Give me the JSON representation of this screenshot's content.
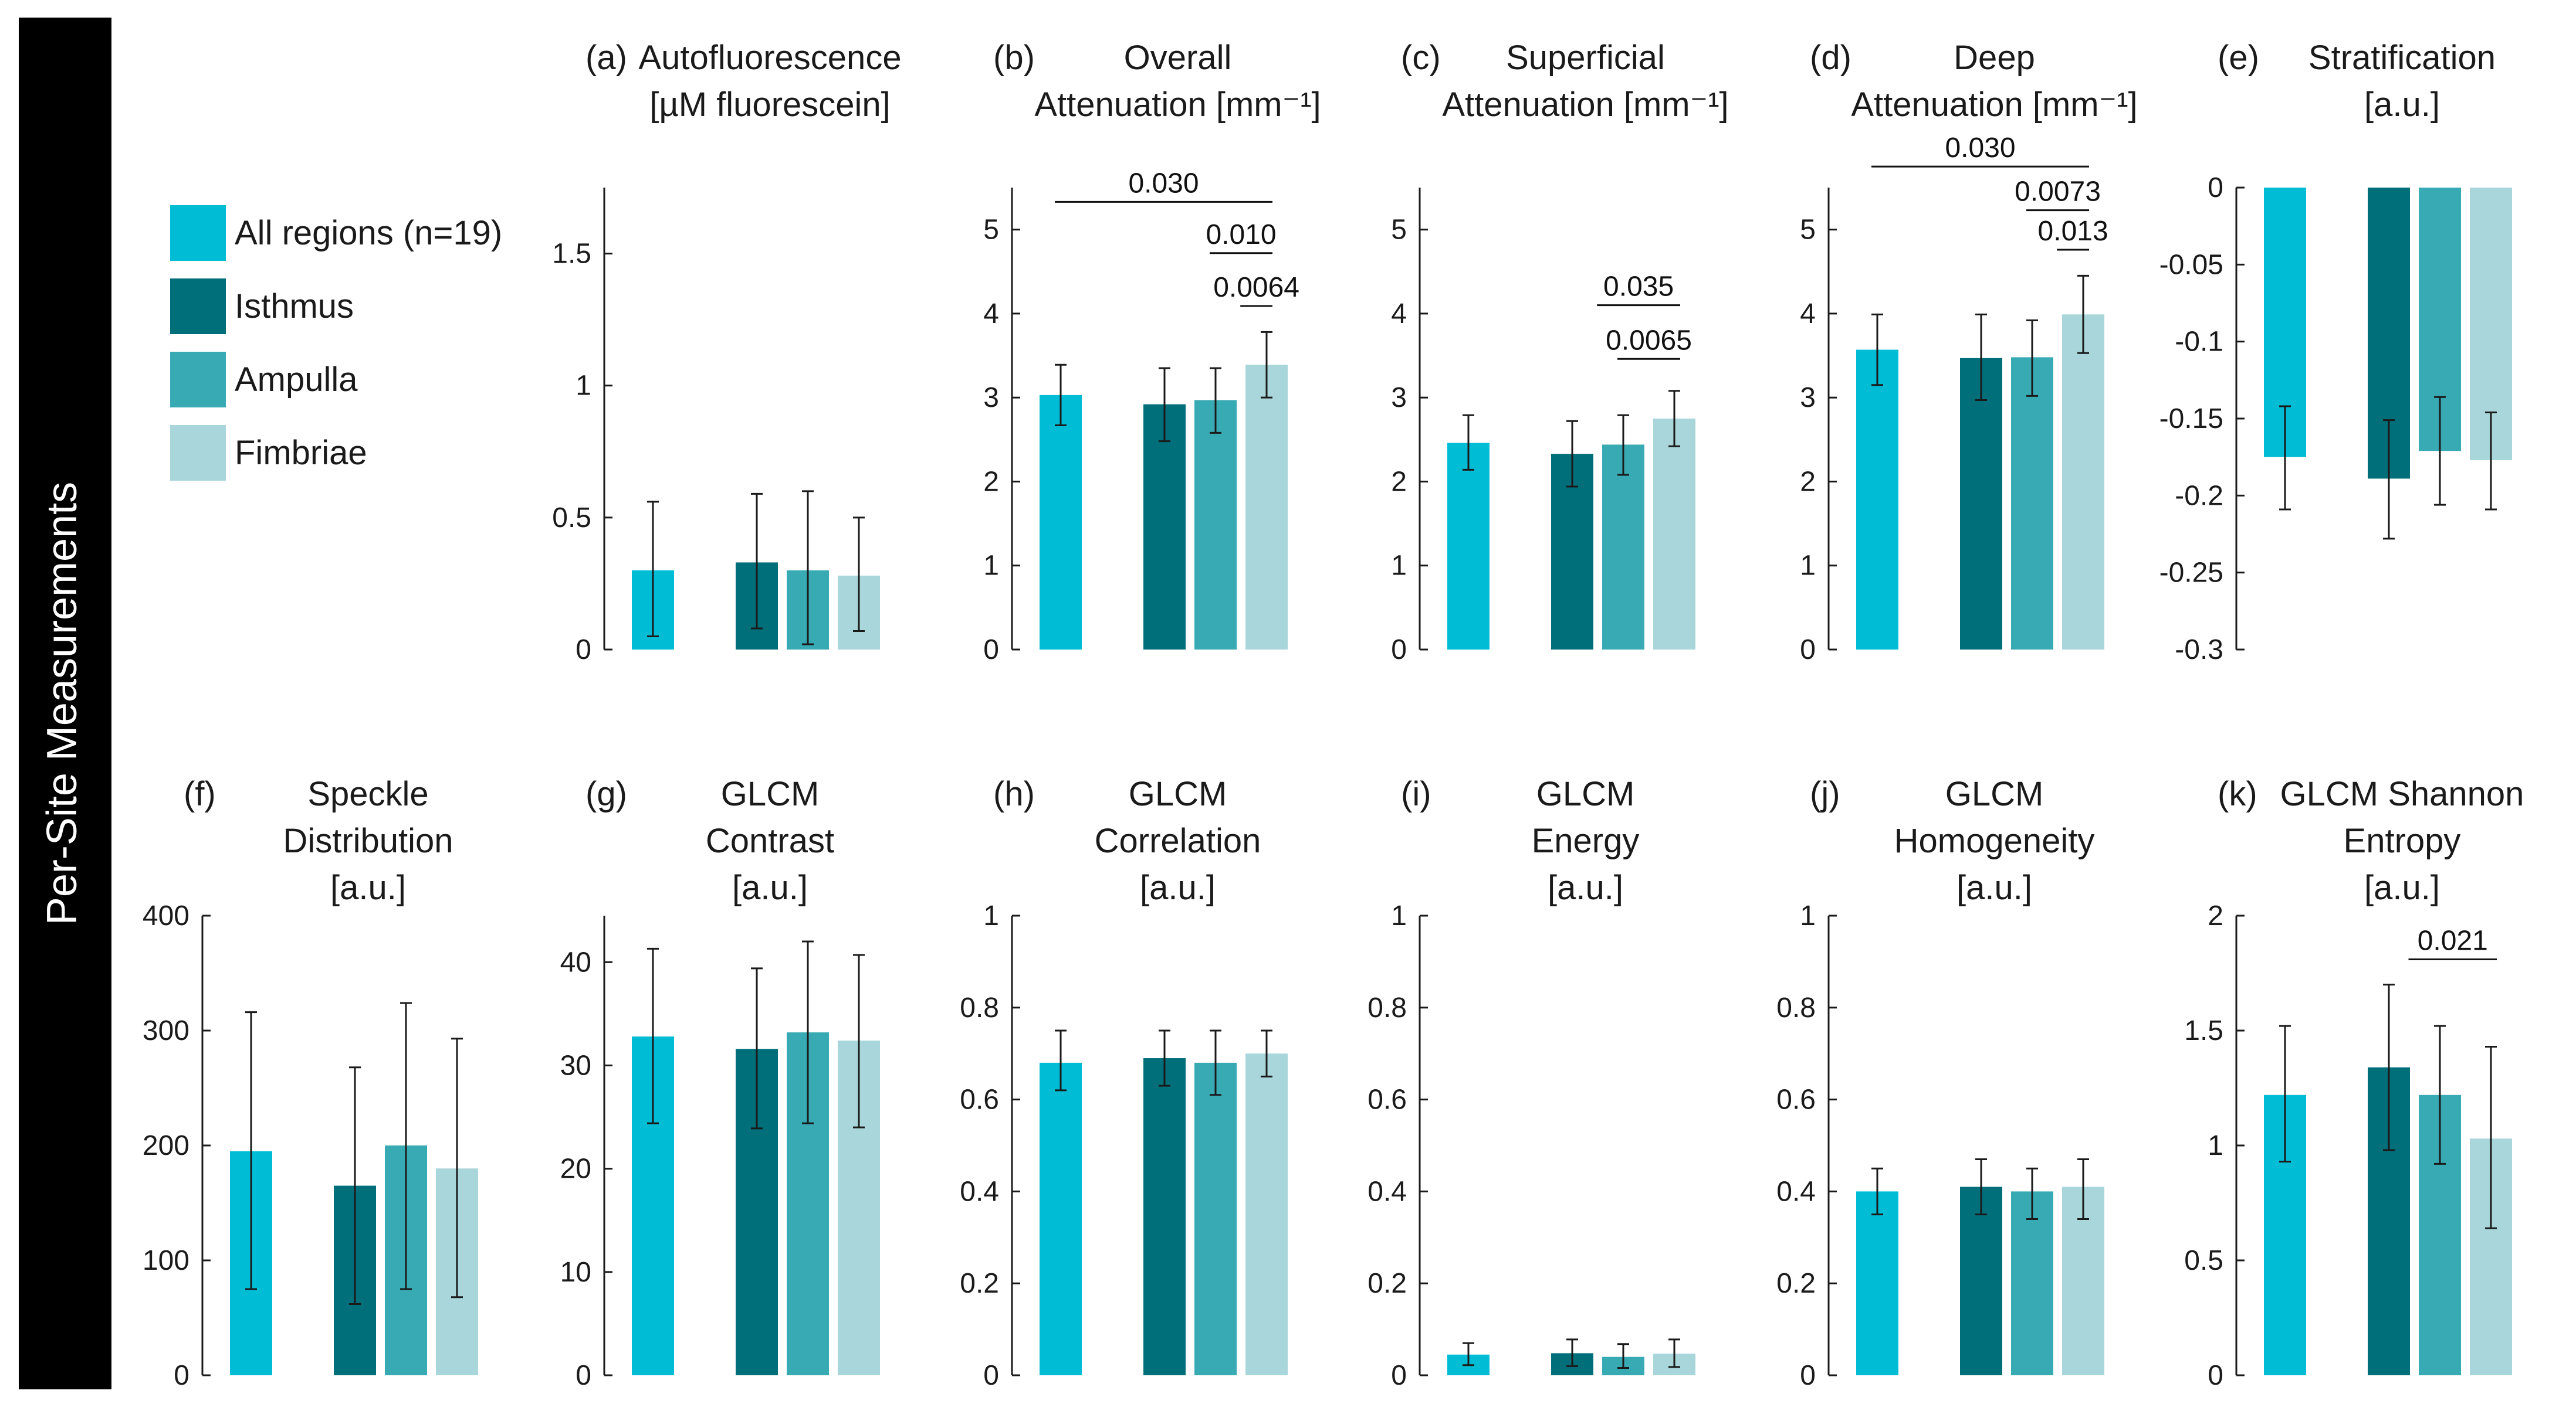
{
  "figure": {
    "side_label": "Per-Site Measurements",
    "colors": {
      "All regions": "#00BCD4",
      "Isthmus": "#006F7A",
      "Ampulla": "#38AAB4",
      "Fimbriae": "#A8D6DA",
      "side_bar": "#000000",
      "axis": "#1a1a1a"
    },
    "legend": [
      {
        "label": "All regions (n=19)",
        "color": "#00BCD4"
      },
      {
        "label": "Isthmus",
        "color": "#006F7A"
      },
      {
        "label": "Ampulla",
        "color": "#38AAB4"
      },
      {
        "label": "Fimbriae",
        "color": "#A8D6DA"
      }
    ]
  },
  "chart_data": [
    {
      "id": "a",
      "type": "bar",
      "panel_label": "(a)",
      "title_lines": [
        "Autofluorescence",
        "[µM fluorescein]"
      ],
      "categories": [
        "All regions",
        "Isthmus",
        "Ampulla",
        "Fimbriae"
      ],
      "values": [
        0.3,
        0.33,
        0.3,
        0.28
      ],
      "err_low": [
        0.05,
        0.08,
        0.02,
        0.07
      ],
      "err_high": [
        0.56,
        0.59,
        0.6,
        0.5
      ],
      "ylim": [
        0,
        1.75
      ],
      "yticks": [
        0,
        0.5,
        1,
        1.5
      ],
      "ytick_labels": [
        "0",
        "0.5",
        "1",
        "1.5"
      ],
      "sig": []
    },
    {
      "id": "b",
      "type": "bar",
      "panel_label": "(b)",
      "title_lines": [
        "Overall",
        "Attenuation [mm⁻¹]"
      ],
      "categories": [
        "All regions",
        "Isthmus",
        "Ampulla",
        "Fimbriae"
      ],
      "values": [
        3.03,
        2.92,
        2.97,
        3.39
      ],
      "err_low": [
        2.67,
        2.48,
        2.58,
        3.0
      ],
      "err_high": [
        3.39,
        3.35,
        3.35,
        3.78
      ],
      "ylim": [
        0,
        5.5
      ],
      "yticks": [
        0,
        1,
        2,
        3,
        4,
        5
      ],
      "ytick_labels": [
        "0",
        "1",
        "2",
        "3",
        "4",
        "5"
      ],
      "sig": [
        {
          "from": 0,
          "to": 3,
          "level": 5.33,
          "label": "0.030"
        },
        {
          "from": 2,
          "to": 3,
          "level": 4.72,
          "label": "0.010"
        },
        {
          "from": 2.6,
          "to": 3,
          "level": 4.09,
          "label": "0.0064"
        }
      ]
    },
    {
      "id": "c",
      "type": "bar",
      "panel_label": "(c)",
      "title_lines": [
        "Superficial",
        "Attenuation [mm⁻¹]"
      ],
      "categories": [
        "All regions",
        "Isthmus",
        "Ampulla",
        "Fimbriae"
      ],
      "values": [
        2.46,
        2.33,
        2.44,
        2.75
      ],
      "err_low": [
        2.14,
        1.94,
        2.08,
        2.42
      ],
      "err_high": [
        2.79,
        2.72,
        2.79,
        3.08
      ],
      "ylim": [
        0,
        5.5
      ],
      "yticks": [
        0,
        1,
        2,
        3,
        4,
        5
      ],
      "ytick_labels": [
        "0",
        "1",
        "2",
        "3",
        "4",
        "5"
      ],
      "sig": [
        {
          "from": 1.6,
          "to": 3,
          "level": 4.1,
          "label": "0.035"
        },
        {
          "from": 2.0,
          "to": 3,
          "level": 3.46,
          "label": "0.0065"
        }
      ]
    },
    {
      "id": "d",
      "type": "bar",
      "panel_label": "(d)",
      "title_lines": [
        "Deep",
        "Attenuation  [mm⁻¹]"
      ],
      "categories": [
        "All regions",
        "Isthmus",
        "Ampulla",
        "Fimbriae"
      ],
      "values": [
        3.57,
        3.47,
        3.48,
        3.99
      ],
      "err_low": [
        3.15,
        2.97,
        3.02,
        3.53
      ],
      "err_high": [
        3.99,
        3.99,
        3.92,
        4.45
      ],
      "ylim": [
        0,
        5.5
      ],
      "yticks": [
        0,
        1,
        2,
        3,
        4,
        5
      ],
      "ytick_labels": [
        "0",
        "1",
        "2",
        "3",
        "4",
        "5"
      ],
      "sig": [
        {
          "from": 0,
          "to": 3,
          "level": 5.75,
          "label": "0.030"
        },
        {
          "from": 2,
          "to": 3,
          "level": 5.23,
          "label": "0.0073"
        },
        {
          "from": 2.6,
          "to": 3,
          "level": 4.76,
          "label": "0.013"
        }
      ]
    },
    {
      "id": "e",
      "type": "bar",
      "panel_label": "(e)",
      "title_lines": [
        "Stratification",
        "[a.u.]"
      ],
      "categories": [
        "All regions",
        "Isthmus",
        "Ampulla",
        "Fimbriae"
      ],
      "values": [
        -0.175,
        -0.189,
        -0.171,
        -0.177
      ],
      "err_low": [
        -0.209,
        -0.228,
        -0.206,
        -0.209
      ],
      "err_high": [
        -0.142,
        -0.151,
        -0.136,
        -0.146
      ],
      "ylim": [
        -0.3,
        0
      ],
      "yticks": [
        0,
        -0.05,
        -0.1,
        -0.15,
        -0.2,
        -0.25,
        -0.3
      ],
      "ytick_labels": [
        "0",
        "-0.05",
        "-0.1",
        "-0.15",
        "-0.2",
        "-0.25",
        "-0.3"
      ],
      "sig": []
    },
    {
      "id": "f",
      "type": "bar",
      "panel_label": "(f)",
      "title_lines": [
        "Speckle",
        "Distribution",
        "[a.u.]"
      ],
      "categories": [
        "All regions",
        "Isthmus",
        "Ampulla",
        "Fimbriae"
      ],
      "values": [
        195,
        165,
        200,
        180
      ],
      "err_low": [
        75,
        62,
        75,
        68
      ],
      "err_high": [
        316,
        268,
        324,
        293
      ],
      "ylim": [
        0,
        400
      ],
      "yticks": [
        0,
        100,
        200,
        300,
        400
      ],
      "ytick_labels": [
        "0",
        "100",
        "200",
        "300",
        "400"
      ],
      "sig": []
    },
    {
      "id": "g",
      "type": "bar",
      "panel_label": "(g)",
      "title_lines": [
        "GLCM",
        "Contrast",
        "[a.u.]"
      ],
      "categories": [
        "All regions",
        "Isthmus",
        "Ampulla",
        "Fimbriae"
      ],
      "values": [
        32.8,
        31.6,
        33.2,
        32.4
      ],
      "err_low": [
        24.4,
        23.9,
        24.4,
        24.0
      ],
      "err_high": [
        41.3,
        39.4,
        42.0,
        40.7
      ],
      "ylim": [
        0,
        44.5
      ],
      "yticks": [
        0,
        10,
        20,
        30,
        40
      ],
      "ytick_labels": [
        "0",
        "10",
        "20",
        "30",
        "40"
      ],
      "sig": []
    },
    {
      "id": "h",
      "type": "bar",
      "panel_label": "(h)",
      "title_lines": [
        "GLCM",
        "Correlation",
        "[a.u.]"
      ],
      "categories": [
        "All regions",
        "Isthmus",
        "Ampulla",
        "Fimbriae"
      ],
      "values": [
        0.68,
        0.69,
        0.68,
        0.7
      ],
      "err_low": [
        0.62,
        0.63,
        0.61,
        0.65
      ],
      "err_high": [
        0.75,
        0.75,
        0.75,
        0.75
      ],
      "ylim": [
        0,
        1
      ],
      "yticks": [
        0,
        0.2,
        0.4,
        0.6,
        0.8,
        1
      ],
      "ytick_labels": [
        "0",
        "0.2",
        "0.4",
        "0.6",
        "0.8",
        "1"
      ],
      "sig": []
    },
    {
      "id": "i",
      "type": "bar",
      "panel_label": "(i)",
      "title_lines": [
        "GLCM",
        "Energy",
        "[a.u.]"
      ],
      "categories": [
        "All regions",
        "Isthmus",
        "Ampulla",
        "Fimbriae"
      ],
      "values": [
        0.045,
        0.048,
        0.04,
        0.047
      ],
      "err_low": [
        0.022,
        0.02,
        0.016,
        0.018
      ],
      "err_high": [
        0.07,
        0.078,
        0.068,
        0.078
      ],
      "ylim": [
        0,
        1
      ],
      "yticks": [
        0,
        0.2,
        0.4,
        0.6,
        0.8,
        1
      ],
      "ytick_labels": [
        "0",
        "0.2",
        "0.4",
        "0.6",
        "0.8",
        "1"
      ],
      "sig": []
    },
    {
      "id": "j",
      "type": "bar",
      "panel_label": "(j)",
      "title_lines": [
        "GLCM",
        "Homogeneity",
        "[a.u.]"
      ],
      "categories": [
        "All regions",
        "Isthmus",
        "Ampulla",
        "Fimbriae"
      ],
      "values": [
        0.4,
        0.41,
        0.4,
        0.41
      ],
      "err_low": [
        0.35,
        0.35,
        0.34,
        0.34
      ],
      "err_high": [
        0.45,
        0.47,
        0.45,
        0.47
      ],
      "ylim": [
        0,
        1
      ],
      "yticks": [
        0,
        0.2,
        0.4,
        0.6,
        0.8,
        1
      ],
      "ytick_labels": [
        "0",
        "0.2",
        "0.4",
        "0.6",
        "0.8",
        "1"
      ],
      "sig": []
    },
    {
      "id": "k",
      "type": "bar",
      "panel_label": "(k)",
      "title_lines": [
        "GLCM Shannon",
        "Entropy",
        "[a.u.]"
      ],
      "categories": [
        "All regions",
        "Isthmus",
        "Ampulla",
        "Fimbriae"
      ],
      "values": [
        1.22,
        1.34,
        1.22,
        1.03
      ],
      "err_low": [
        0.93,
        0.98,
        0.92,
        0.64
      ],
      "err_high": [
        1.52,
        1.7,
        1.52,
        1.43
      ],
      "ylim": [
        0,
        2
      ],
      "yticks": [
        0,
        0.5,
        1,
        1.5,
        2
      ],
      "ytick_labels": [
        "0",
        "0.5",
        "1",
        "1.5",
        "2"
      ],
      "sig": [
        {
          "from": 1.5,
          "to": 3,
          "level": 1.81,
          "label": "0.021"
        }
      ]
    }
  ]
}
